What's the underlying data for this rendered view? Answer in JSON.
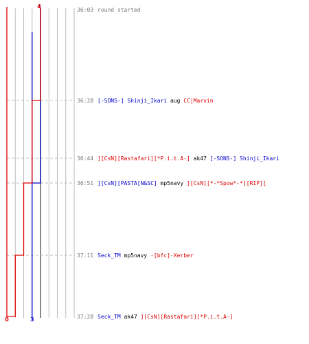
{
  "colors": {
    "team_a": "#0000cc",
    "team_b": "#dd0000",
    "dark_text": "#000000",
    "time_text": "#777777",
    "grid": "#bbbbbb",
    "axis_dark": "#555555"
  },
  "chart_data": {
    "type": "line",
    "series": [
      {
        "team": "team_a",
        "scores": [
          4,
          4,
          4,
          3,
          3,
          3,
          3
        ],
        "start_label": "4",
        "end_label": "3"
      },
      {
        "team": "team_b",
        "scores": [
          4,
          3,
          3,
          2,
          1,
          0,
          0
        ],
        "start_label": "4",
        "end_label": "0"
      }
    ],
    "events": [
      {
        "time": "36:03",
        "parts": [
          {
            "text": "round started",
            "color": "time_text"
          }
        ]
      },
      {
        "time": "36:28",
        "parts": [
          {
            "text": "[-SONS-] Shinji_Ikari",
            "color": "team_a"
          },
          {
            "text": " aug ",
            "color": "dark_text"
          },
          {
            "text": "CC|Marvin",
            "color": "team_b"
          }
        ]
      },
      {
        "time": "36:44",
        "parts": [
          {
            "text": "][CsN][Rastafari][*P.i.t.A-]",
            "color": "team_b"
          },
          {
            "text": " ak47 ",
            "color": "dark_text"
          },
          {
            "text": "[-SONS-] Shinji_Ikari",
            "color": "team_a"
          }
        ]
      },
      {
        "time": "36:51",
        "parts": [
          {
            "text": "][CsN][PASTA[N&SC]",
            "color": "team_a"
          },
          {
            "text": " mp5navy ",
            "color": "dark_text"
          },
          {
            "text": "][CsN][*-*Spow*-*][RIP][",
            "color": "team_b"
          }
        ]
      },
      {
        "time": "37:11",
        "parts": [
          {
            "text": "Seck_TM",
            "color": "team_a"
          },
          {
            "text": " mp5navy ",
            "color": "dark_text"
          },
          {
            "text": "-[bfc]-Xerber",
            "color": "team_b"
          }
        ]
      },
      {
        "time": "37:28",
        "parts": [
          {
            "text": "Seck_TM",
            "color": "team_a"
          },
          {
            "text": " ak47 ",
            "color": "dark_text"
          },
          {
            "text": "][CsN][Rastafari][*P.i.t.A-]",
            "color": "team_b"
          }
        ]
      }
    ]
  }
}
